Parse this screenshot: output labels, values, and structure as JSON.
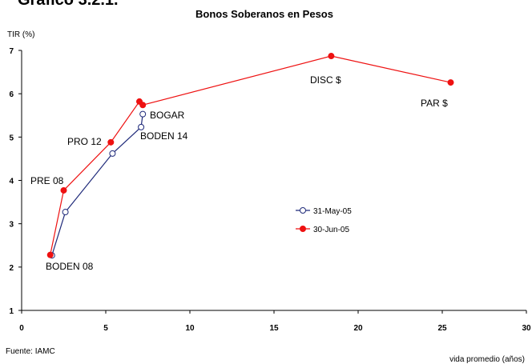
{
  "heading": "Gráfico 3.2.1.",
  "chart_data": {
    "type": "line",
    "title": "Bonos Soberanos en Pesos",
    "y_label": "TIR (%)",
    "x_label": "vida promedio (años)",
    "source": "Fuente: IAMC",
    "xlim": [
      0,
      30
    ],
    "xticks": [
      0,
      5,
      10,
      15,
      20,
      25,
      30
    ],
    "ylim": [
      1,
      7
    ],
    "yticks": [
      1,
      2,
      3,
      4,
      5,
      6,
      7
    ],
    "grid": false,
    "series": [
      {
        "name": "31-May-05",
        "color": "#1f2a7a",
        "marker": "open",
        "x": [
          1.8,
          2.6,
          5.4,
          7.1,
          7.2
        ],
        "values": [
          2.27,
          3.27,
          4.62,
          5.23,
          5.53
        ]
      },
      {
        "name": "30-Jun-05",
        "color": "#ee1111",
        "marker": "filled",
        "x": [
          1.7,
          2.5,
          5.3,
          7.0,
          7.2,
          18.4,
          25.5
        ],
        "values": [
          2.28,
          3.77,
          4.88,
          5.82,
          5.74,
          6.87,
          6.26
        ]
      }
    ],
    "annotations": [
      "DISC $",
      "PAR $",
      "BOGAR",
      "BODEN 14",
      "PRO 12",
      "PRE 08",
      "BODEN 08"
    ]
  }
}
